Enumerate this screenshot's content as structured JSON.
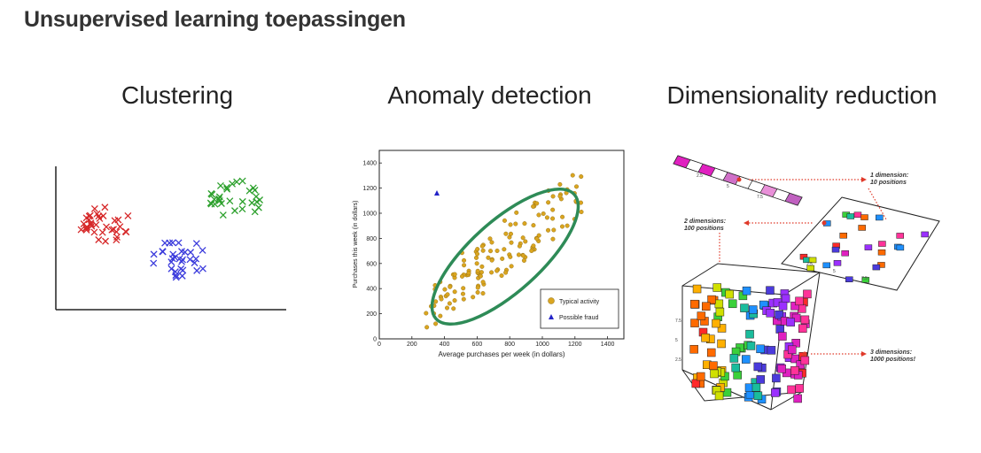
{
  "slide": {
    "title": "Unsupervised learning toepassingen"
  },
  "columns": [
    {
      "title": "Clustering"
    },
    {
      "title": "Anomaly detection"
    },
    {
      "title": "Dimensionality reduction"
    }
  ],
  "clustering": {
    "colors": {
      "red": "#d62728",
      "blue": "#3b3bdc",
      "green": "#2ca02c"
    }
  },
  "anomaly_chart": {
    "xlabel": "Average purchases per week (in dollars)",
    "ylabel": "Purchases this week (in dollars)",
    "x_ticks": [
      "0",
      "200",
      "400",
      "600",
      "800",
      "1000",
      "1200",
      "1400"
    ],
    "y_ticks": [
      "0",
      "200",
      "400",
      "600",
      "800",
      "1000",
      "1200",
      "1400"
    ],
    "legend": {
      "typical": "Typical activity",
      "fraud": "Possible fraud"
    },
    "colors": {
      "typical": "#daa520",
      "fraud": "#2323c8",
      "ellipse": "#2e8b57"
    }
  },
  "dimensionality": {
    "label_1d": "1 dimension:",
    "label_1d_sub": "10 positions",
    "label_2d": "2 dimensions:",
    "label_2d_sub": "100 positions",
    "label_3d": "3 dimensions:",
    "label_3d_sub": "1000 positions!",
    "tick_a": "2.5",
    "tick_b": "5",
    "tick_c": "7.5"
  }
}
